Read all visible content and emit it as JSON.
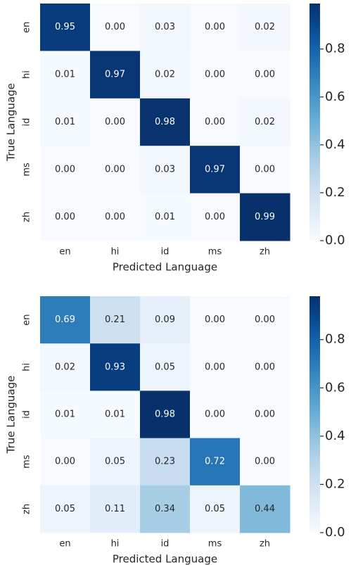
{
  "chart_data": [
    {
      "type": "heatmap",
      "xlabel": "Predicted Language",
      "ylabel": "True Language",
      "x": [
        "en",
        "hi",
        "id",
        "ms",
        "zh"
      ],
      "y": [
        "en",
        "hi",
        "id",
        "ms",
        "zh"
      ],
      "values": [
        [
          0.95,
          0.0,
          0.03,
          0.0,
          0.02
        ],
        [
          0.01,
          0.97,
          0.02,
          0.0,
          0.0
        ],
        [
          0.01,
          0.0,
          0.98,
          0.0,
          0.02
        ],
        [
          0.0,
          0.0,
          0.03,
          0.97,
          0.0
        ],
        [
          0.0,
          0.0,
          0.01,
          0.0,
          0.99
        ]
      ],
      "value_labels": [
        [
          "0.95",
          "0.00",
          "0.03",
          "0.00",
          "0.02"
        ],
        [
          "0.01",
          "0.97",
          "0.02",
          "0.00",
          "0.00"
        ],
        [
          "0.01",
          "0.00",
          "0.98",
          "0.00",
          "0.02"
        ],
        [
          "0.00",
          "0.00",
          "0.03",
          "0.97",
          "0.00"
        ],
        [
          "0.00",
          "0.00",
          "0.01",
          "0.00",
          "0.99"
        ]
      ],
      "colormap": "Blues",
      "zlim": [
        0,
        0.99
      ],
      "zticks": [
        {
          "value": 0,
          "label": "0.0"
        },
        {
          "value": 0.2,
          "label": "0.2"
        },
        {
          "value": 0.4,
          "label": "0.4"
        },
        {
          "value": 0.6,
          "label": "0.6"
        },
        {
          "value": 0.8,
          "label": "0.8"
        }
      ]
    },
    {
      "type": "heatmap",
      "xlabel": "Predicted Language",
      "ylabel": "True Language",
      "x": [
        "en",
        "hi",
        "id",
        "ms",
        "zh"
      ],
      "y": [
        "en",
        "hi",
        "id",
        "ms",
        "zh"
      ],
      "values": [
        [
          0.69,
          0.21,
          0.09,
          0.0,
          0.0
        ],
        [
          0.02,
          0.93,
          0.05,
          0.0,
          0.0
        ],
        [
          0.01,
          0.01,
          0.98,
          0.0,
          0.0
        ],
        [
          0.0,
          0.05,
          0.23,
          0.72,
          0.0
        ],
        [
          0.05,
          0.11,
          0.34,
          0.05,
          0.44
        ]
      ],
      "value_labels": [
        [
          "0.69",
          "0.21",
          "0.09",
          "0.00",
          "0.00"
        ],
        [
          "0.02",
          "0.93",
          "0.05",
          "0.00",
          "0.00"
        ],
        [
          "0.01",
          "0.01",
          "0.98",
          "0.00",
          "0.00"
        ],
        [
          "0.00",
          "0.05",
          "0.23",
          "0.72",
          "0.00"
        ],
        [
          "0.05",
          "0.11",
          "0.34",
          "0.05",
          "0.44"
        ]
      ],
      "colormap": "Blues",
      "zlim": [
        0,
        0.98
      ],
      "zticks": [
        {
          "value": 0,
          "label": "0.0"
        },
        {
          "value": 0.2,
          "label": "0.2"
        },
        {
          "value": 0.4,
          "label": "0.4"
        },
        {
          "value": 0.6,
          "label": "0.6"
        },
        {
          "value": 0.8,
          "label": "0.8"
        }
      ]
    }
  ]
}
